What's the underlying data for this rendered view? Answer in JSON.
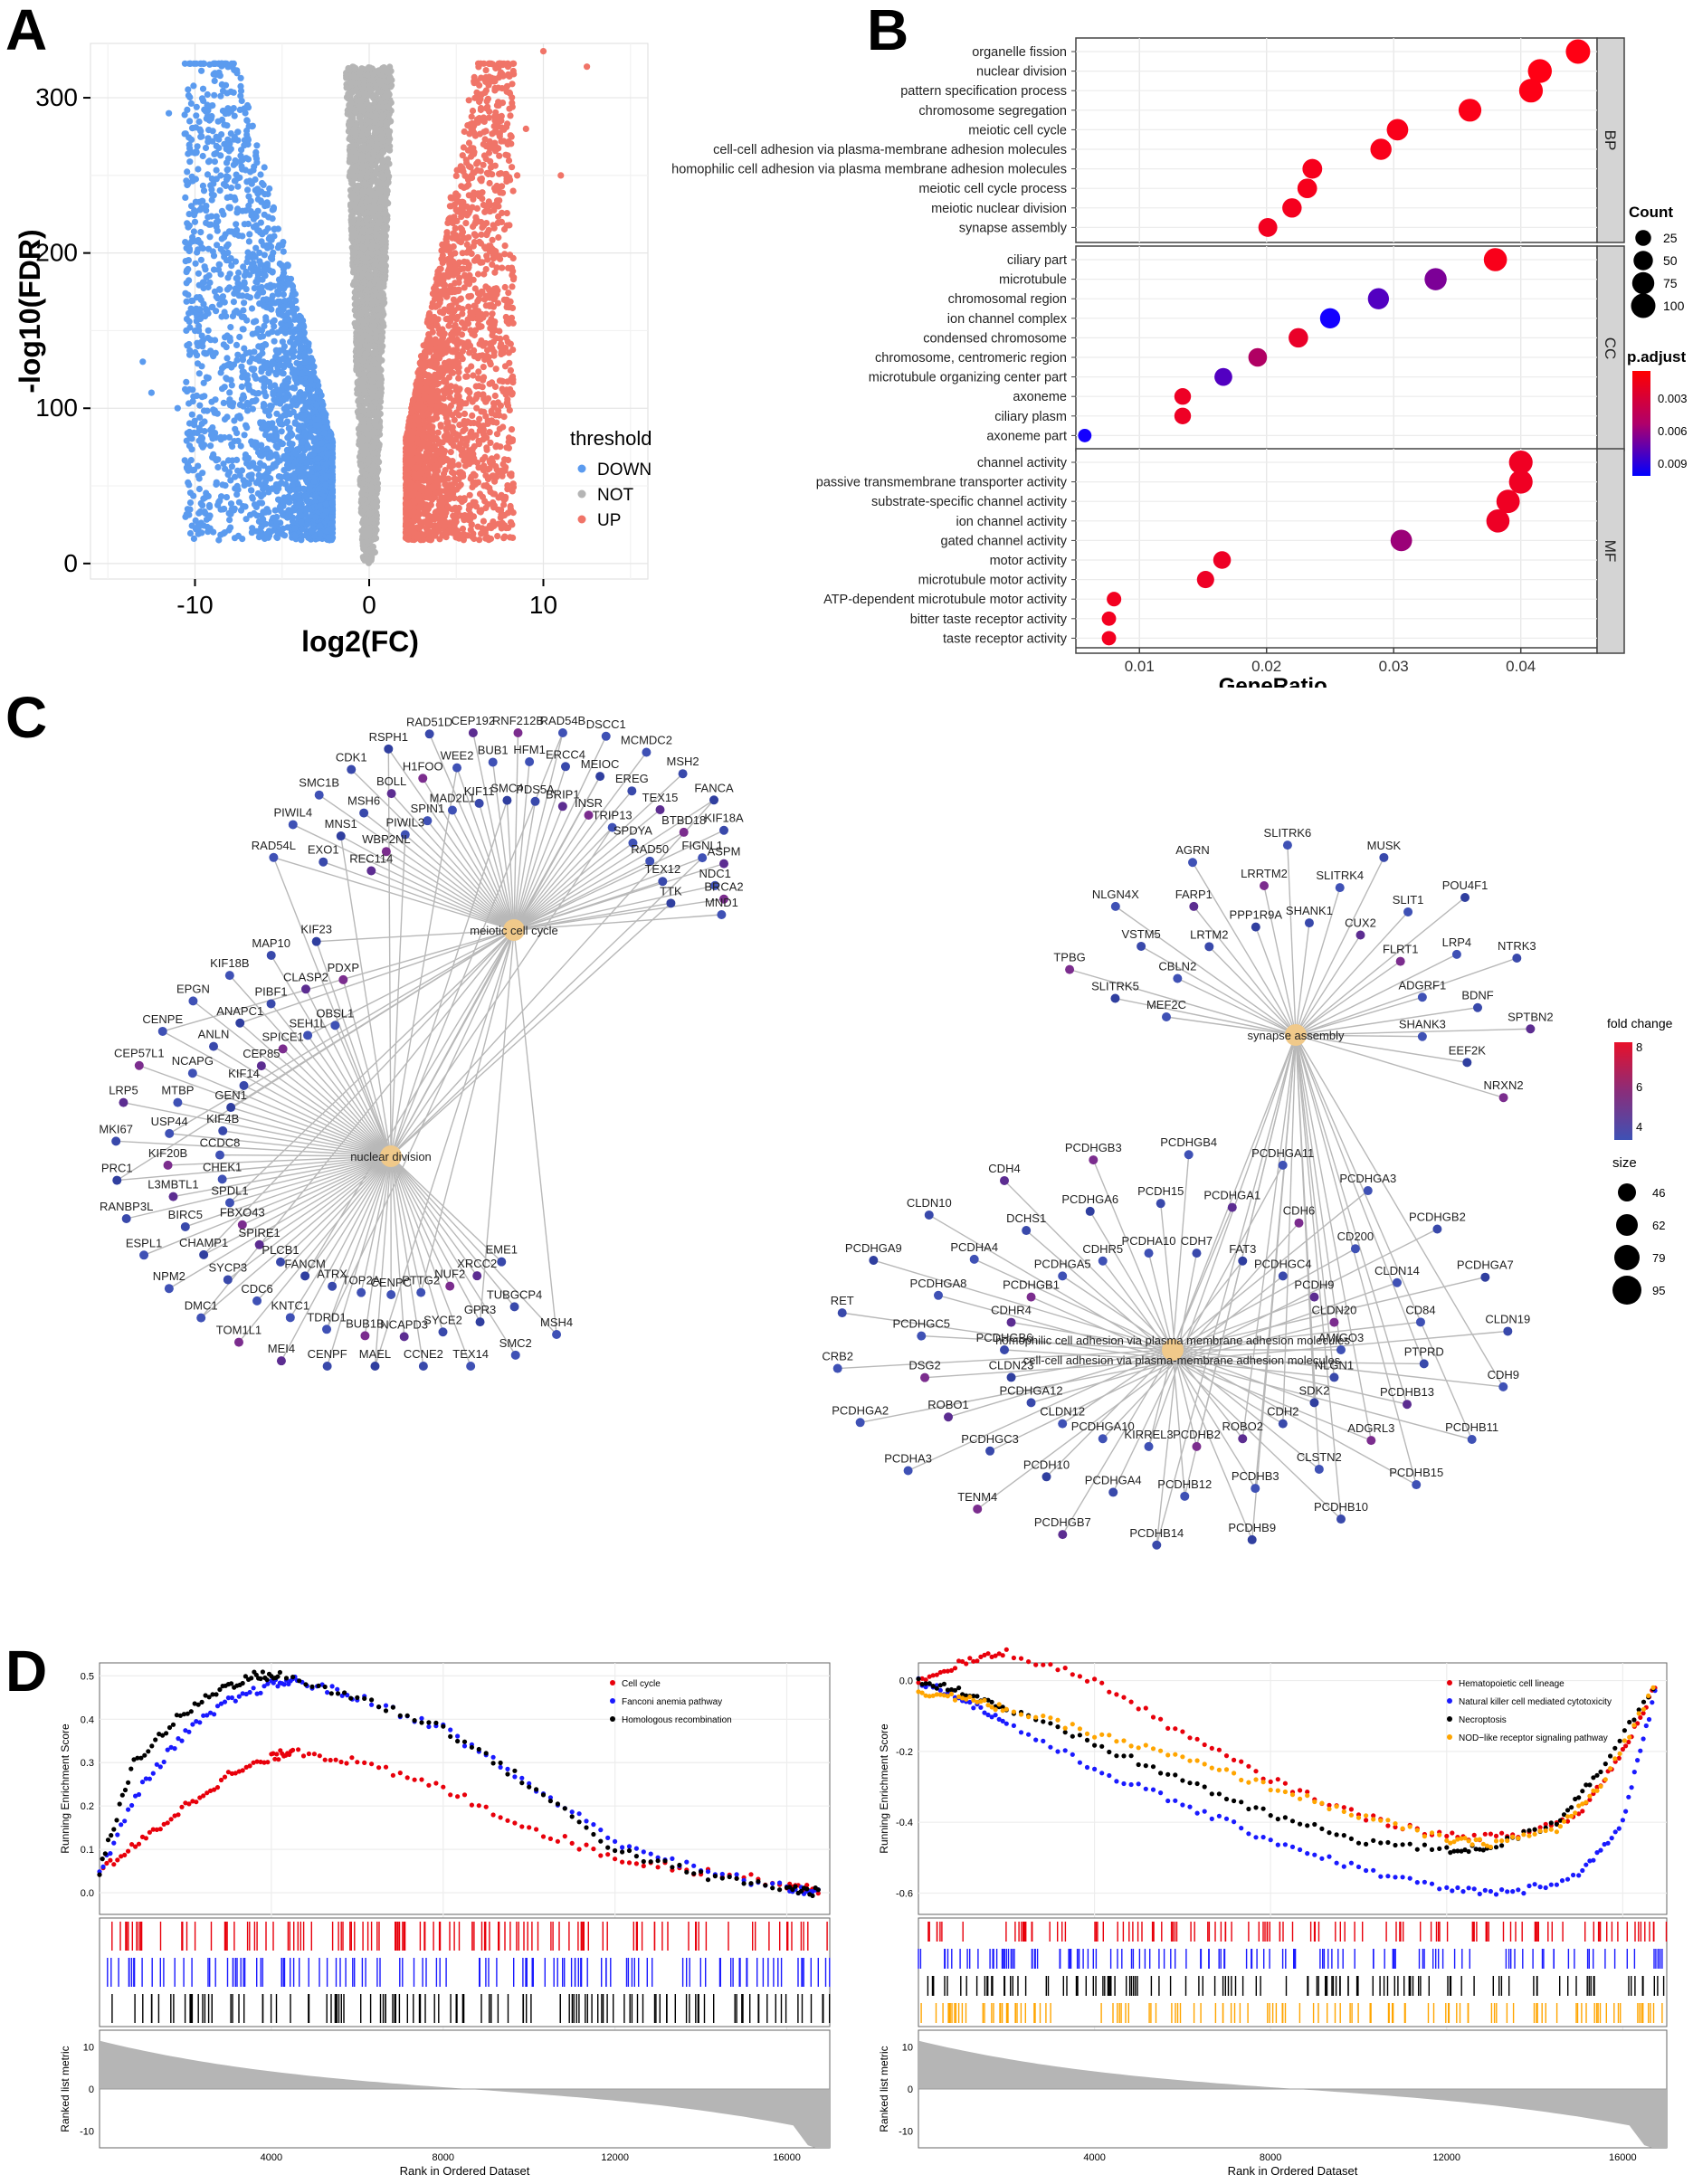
{
  "panel_letters": {
    "a": "A",
    "b": "B",
    "c": "C",
    "d": "D"
  },
  "chart_data": [
    {
      "id": "A",
      "type": "scatter",
      "xlabel": "log2(FC)",
      "ylabel": "-log10(FDR)",
      "xlim": [
        -16,
        16
      ],
      "ylim": [
        -10,
        335
      ],
      "xticks": [
        -10,
        0,
        10
      ],
      "yticks": [
        0,
        100,
        200,
        300
      ],
      "grid": true,
      "legend": {
        "title": "threshold",
        "position": "right",
        "entries": [
          {
            "name": "DOWN",
            "color": "#5b9bef"
          },
          {
            "name": "NOT",
            "color": "#b5b5b5"
          },
          {
            "name": "UP",
            "color": "#f07468"
          }
        ]
      },
      "density": {
        "note_points": "volcano distribution, DOWN x in [-12,-2], UP x in [2,9], NOT x in [-2,2]"
      }
    },
    {
      "id": "B",
      "type": "scatter",
      "xlabel": "GeneRatio",
      "xlim": [
        0.005,
        0.046
      ],
      "xticks": [
        0.01,
        0.02,
        0.03,
        0.04
      ],
      "xtick_labels": [
        "0.01",
        "0.02",
        "0.03",
        "0.04"
      ],
      "grid": true,
      "facets": [
        {
          "name": "BP",
          "terms": [
            {
              "term": "organelle fission",
              "ratio": 0.0445,
              "count": 100,
              "padj": 0.0002
            },
            {
              "term": "nuclear division",
              "ratio": 0.0415,
              "count": 94,
              "padj": 0.0002
            },
            {
              "term": "pattern specification process",
              "ratio": 0.0408,
              "count": 92,
              "padj": 0.0003
            },
            {
              "term": "chromosome segregation",
              "ratio": 0.036,
              "count": 82,
              "padj": 0.0004
            },
            {
              "term": "meiotic cell cycle",
              "ratio": 0.0303,
              "count": 69,
              "padj": 0.0005
            },
            {
              "term": "cell-cell adhesion via plasma-membrane adhesion molecules",
              "ratio": 0.029,
              "count": 66,
              "padj": 0.0005
            },
            {
              "term": "homophilic cell adhesion via plasma membrane adhesion molecules",
              "ratio": 0.0236,
              "count": 53,
              "padj": 0.0006
            },
            {
              "term": "meiotic cell cycle process",
              "ratio": 0.0232,
              "count": 52,
              "padj": 0.0006
            },
            {
              "term": "meiotic nuclear division",
              "ratio": 0.022,
              "count": 50,
              "padj": 0.0007
            },
            {
              "term": "synapse assembly",
              "ratio": 0.0201,
              "count": 46,
              "padj": 0.0008
            }
          ]
        },
        {
          "name": "CC",
          "terms": [
            {
              "term": "ciliary part",
              "ratio": 0.038,
              "count": 86,
              "padj": 0.0005
            },
            {
              "term": "microtubule",
              "ratio": 0.0333,
              "count": 75,
              "padj": 0.0065
            },
            {
              "term": "chromosomal region",
              "ratio": 0.0288,
              "count": 65,
              "padj": 0.0085
            },
            {
              "term": "ion channel complex",
              "ratio": 0.025,
              "count": 57,
              "padj": 0.0115
            },
            {
              "term": "condensed chromosome",
              "ratio": 0.0225,
              "count": 51,
              "padj": 0.0012
            },
            {
              "term": "chromosome, centromeric region",
              "ratio": 0.0193,
              "count": 44,
              "padj": 0.004
            },
            {
              "term": "microtubule organizing center part",
              "ratio": 0.0166,
              "count": 38,
              "padj": 0.0085
            },
            {
              "term": "axoneme",
              "ratio": 0.0134,
              "count": 30,
              "padj": 0.001
            },
            {
              "term": "ciliary plasm",
              "ratio": 0.0134,
              "count": 30,
              "padj": 0.001
            },
            {
              "term": "axoneme part",
              "ratio": 0.0057,
              "count": 13,
              "padj": 0.0115
            }
          ]
        },
        {
          "name": "MF",
          "terms": [
            {
              "term": "channel activity",
              "ratio": 0.04,
              "count": 91,
              "padj": 0.0009
            },
            {
              "term": "passive transmembrane transporter activity",
              "ratio": 0.04,
              "count": 91,
              "padj": 0.0009
            },
            {
              "term": "substrate-specific channel activity",
              "ratio": 0.039,
              "count": 88,
              "padj": 0.0009
            },
            {
              "term": "ion channel activity",
              "ratio": 0.0382,
              "count": 86,
              "padj": 0.001
            },
            {
              "term": "gated channel activity",
              "ratio": 0.0306,
              "count": 69,
              "padj": 0.005
            },
            {
              "term": "motor activity",
              "ratio": 0.0165,
              "count": 37,
              "padj": 0.001
            },
            {
              "term": "microtubule motor activity",
              "ratio": 0.0152,
              "count": 34,
              "padj": 0.001
            },
            {
              "term": "ATP-dependent microtubule motor activity",
              "ratio": 0.008,
              "count": 18,
              "padj": 0.0008
            },
            {
              "term": "bitter taste receptor activity",
              "ratio": 0.0076,
              "count": 17,
              "padj": 0.0008
            },
            {
              "term": "taste receptor activity",
              "ratio": 0.0076,
              "count": 17,
              "padj": 0.0008
            }
          ]
        }
      ],
      "size_legend": {
        "title": "Count",
        "entries": [
          {
            "label": "25",
            "value": 25
          },
          {
            "label": "50",
            "value": 50
          },
          {
            "label": "75",
            "value": 75
          },
          {
            "label": "100",
            "value": 100
          }
        ]
      },
      "color_legend": {
        "title": "p.adjust",
        "ticks": [
          "0.003",
          "0.006",
          "0.009"
        ],
        "low_color": "#ff0000",
        "high_color": "#0000ff"
      }
    },
    {
      "id": "C",
      "type": "network",
      "hubs_left": [
        "meiotic cell cycle",
        "nuclear division"
      ],
      "hubs_right": [
        "synapse assembly",
        "homophilic cell adhesion via plasma membrane adhesion molecules",
        "cell-cell adhesion via plasma-membrane adhesion molecules"
      ],
      "left_genes": [
        "RAD54L",
        "EXO1",
        "REC114",
        "PIWIL4",
        "MNS1",
        "WBP2NL",
        "SMC1B",
        "MSH6",
        "PIWIL3",
        "CDK1",
        "BOLL",
        "SPIN1",
        "RSPH1",
        "H1FOO",
        "MAD2L1",
        "RAD51D",
        "WEE2",
        "KIF11",
        "CEP192",
        "BUB1",
        "SMC4",
        "RNF212B",
        "HFM1",
        "PDS5A",
        "RAD54B",
        "ERCC4",
        "BRIP1",
        "DSCC1",
        "MEIOC",
        "INSR",
        "MCMDC2",
        "EREG",
        "TRIP13",
        "MSH2",
        "TEX15",
        "SPDYA",
        "FANCA",
        "BTBD18",
        "RAD50",
        "KIF18A",
        "FIGNL1",
        "TEX12",
        "ASPM",
        "NDC1",
        "TTK",
        "BRCA2",
        "MND1",
        "EME1",
        "MSH4",
        "TUBGCP4",
        "XRCC2",
        "SMC2",
        "GPR3",
        "NUF2",
        "TEX14",
        "SYCE2",
        "PTTG2",
        "CCNE2",
        "NCAPD3",
        "CENPC",
        "MAEL",
        "BUB1B",
        "TOP2A",
        "CENPF",
        "TDRD1",
        "ATRX",
        "MEI4",
        "KNTC1",
        "FANCM",
        "TOM1L1",
        "CDC6",
        "PLCB1",
        "DMC1",
        "SYCP3",
        "SPIRE1",
        "NPM2",
        "CHAMP1",
        "FBXO43",
        "ESPL1",
        "BIRC5",
        "SPDL1",
        "RANBP3L",
        "L3MBTL1",
        "CHEK1",
        "PRC1",
        "KIF20B",
        "CCDC8",
        "MKI67",
        "USP44",
        "KIF4B",
        "LRP5",
        "MTBP",
        "GEN1",
        "CEP57L1",
        "NCAPG",
        "KIF14",
        "CENPE",
        "ANLN",
        "CEP85",
        "EPGN",
        "ANAPC1",
        "SPICE1",
        "KIF18B",
        "PIBF1",
        "SEH1L",
        "MAP10",
        "CLASP2",
        "OBSL1",
        "KIF23",
        "PDXP"
      ],
      "right_genes": [
        "MEF2C",
        "SLITRK5",
        "TPBG",
        "CBLN2",
        "VSTM5",
        "NLGN4X",
        "LRTM2",
        "FARP1",
        "AGRN",
        "PPP1R9A",
        "LRRTM2",
        "SLITRK6",
        "SHANK1",
        "SLITRK4",
        "MUSK",
        "CUX2",
        "SLIT1",
        "POU4F1",
        "FLRT1",
        "LRP4",
        "NTRK3",
        "ADGRF1",
        "BDNF",
        "SPTBN2",
        "SHANK3",
        "EEF2K",
        "NRXN2",
        "AMIGO3",
        "PTPRD",
        "CDH9",
        "NLGN1",
        "PCDHB13",
        "PCDHB11",
        "SDK2",
        "ADGRL3",
        "PCDHB15",
        "CDH2",
        "CLSTN2",
        "PCDHB10",
        "ROBO2",
        "PCDHB3",
        "PCDHB9",
        "PCDHB2",
        "PCDHB12",
        "PCDHB14",
        "KIRREL3",
        "PCDHGA4",
        "PCDHGB7",
        "PCDHGA10",
        "PCDH10",
        "TENM4",
        "CLDN12",
        "PCDHGC3",
        "PCDHA3",
        "PCDHGA12",
        "ROBO1",
        "PCDHGA2",
        "CLDN23",
        "DSG2",
        "CRB2",
        "PCDHGB6",
        "PCDHGC5",
        "RET",
        "CDHR4",
        "PCDHGA8",
        "PCDHGA9",
        "PCDHGB1",
        "PCDHA4",
        "CLDN10",
        "PCDHGA5",
        "DCHS1",
        "CDH4",
        "CDHR5",
        "PCDHGA6",
        "PCDHGB3",
        "PCDHA10",
        "PCDH15",
        "PCDHGB4",
        "CDH7",
        "PCDHGA1",
        "PCDHGA11",
        "FAT3",
        "CDH6",
        "PCDHGA3",
        "PCDHGC4",
        "CD200",
        "PCDHGB2",
        "PCDH9",
        "CLDN14",
        "PCDHGA7",
        "CLDN20",
        "CD84",
        "CLDN19"
      ],
      "fold_legend": {
        "title": "fold change",
        "ticks": [
          "8",
          "6",
          "4"
        ]
      },
      "size_legend": {
        "title": "size",
        "entries": [
          "46",
          "62",
          "79",
          "95"
        ]
      }
    },
    {
      "id": "D-left",
      "type": "line",
      "ylabel": "Running Enrichment Score",
      "xlabel": "Rank in Ordered Dataset",
      "xlim": [
        0,
        17000
      ],
      "xticks": [
        4000,
        8000,
        12000,
        16000
      ],
      "ylim": [
        -0.05,
        0.53
      ],
      "yticks": [
        0.0,
        0.1,
        0.2,
        0.3,
        0.4,
        0.5
      ],
      "ytick_labels": [
        "0.0",
        "0.1",
        "0.2",
        "0.3",
        "0.4",
        "0.5"
      ],
      "metric_label": "Ranked list metric",
      "metric_ticks": [
        "10",
        "0",
        "-10"
      ],
      "legend_position": "top-right",
      "series": [
        {
          "name": "Cell cycle",
          "color": "#e8000b",
          "x": [
            0,
            1000,
            2000,
            3000,
            4000,
            4500,
            6000,
            8000,
            10000,
            12000,
            14000,
            16000,
            16800
          ],
          "values": [
            0.05,
            0.12,
            0.2,
            0.27,
            0.31,
            0.33,
            0.3,
            0.24,
            0.15,
            0.08,
            0.05,
            0.02,
            0.0
          ]
        },
        {
          "name": "Fanconi anemia pathway",
          "color": "#1a1aff",
          "x": [
            0,
            1000,
            2000,
            3000,
            4000,
            4600,
            6000,
            8000,
            10000,
            12000,
            14000,
            16000,
            16800
          ],
          "values": [
            0.05,
            0.25,
            0.37,
            0.44,
            0.48,
            0.49,
            0.45,
            0.38,
            0.25,
            0.12,
            0.05,
            0.01,
            0.0
          ]
        },
        {
          "name": "Homologous recombination",
          "color": "#000000",
          "x": [
            0,
            800,
            1800,
            2800,
            3600,
            4200,
            6000,
            8000,
            10000,
            12000,
            14000,
            16000,
            16800
          ],
          "values": [
            0.05,
            0.3,
            0.4,
            0.47,
            0.5,
            0.5,
            0.45,
            0.38,
            0.25,
            0.1,
            0.04,
            0.01,
            0.0
          ]
        }
      ]
    },
    {
      "id": "D-right",
      "type": "line",
      "ylabel": "Running Enrichment Score",
      "xlabel": "Rank in Ordered Dataset",
      "xlim": [
        0,
        17000
      ],
      "xticks": [
        4000,
        8000,
        12000,
        16000
      ],
      "ylim": [
        -0.66,
        0.05
      ],
      "yticks": [
        0.0,
        -0.2,
        -0.4,
        -0.6
      ],
      "ytick_labels": [
        "0.0",
        "-0.2",
        "-0.4",
        "-0.6"
      ],
      "metric_label": "Ranked list metric",
      "metric_ticks": [
        "10",
        "0",
        "-10"
      ],
      "legend_position": "top-right",
      "series": [
        {
          "name": "Hematopoietic cell lineage",
          "color": "#e8000b",
          "x": [
            0,
            1000,
            2000,
            4000,
            6000,
            8000,
            10000,
            12000,
            13500,
            15000,
            16000,
            16800
          ],
          "values": [
            0.0,
            0.05,
            0.08,
            0.0,
            -0.15,
            -0.28,
            -0.38,
            -0.44,
            -0.44,
            -0.38,
            -0.2,
            0.0
          ]
        },
        {
          "name": "Natural killer cell mediated cytotoxicity",
          "color": "#1a1aff",
          "x": [
            0,
            1000,
            2000,
            4000,
            6000,
            8000,
            10000,
            12000,
            13500,
            15000,
            16000,
            16800
          ],
          "values": [
            0.0,
            -0.05,
            -0.12,
            -0.25,
            -0.35,
            -0.45,
            -0.53,
            -0.59,
            -0.6,
            -0.55,
            -0.4,
            0.0
          ]
        },
        {
          "name": "Necroptosis",
          "color": "#000000",
          "x": [
            0,
            1000,
            2000,
            4000,
            6000,
            8000,
            10000,
            12000,
            13000,
            14500,
            15500,
            16800
          ],
          "values": [
            0.0,
            -0.03,
            -0.08,
            -0.18,
            -0.28,
            -0.38,
            -0.45,
            -0.48,
            -0.47,
            -0.4,
            -0.25,
            0.0
          ]
        },
        {
          "name": "NOD−like receptor signaling pathway",
          "color": "#ffa500",
          "x": [
            0,
            1000,
            2000,
            4000,
            6000,
            8000,
            10000,
            12000,
            13000,
            14500,
            15500,
            16800
          ],
          "values": [
            -0.03,
            -0.05,
            -0.08,
            -0.15,
            -0.22,
            -0.3,
            -0.38,
            -0.45,
            -0.46,
            -0.42,
            -0.3,
            0.0
          ]
        }
      ]
    }
  ]
}
